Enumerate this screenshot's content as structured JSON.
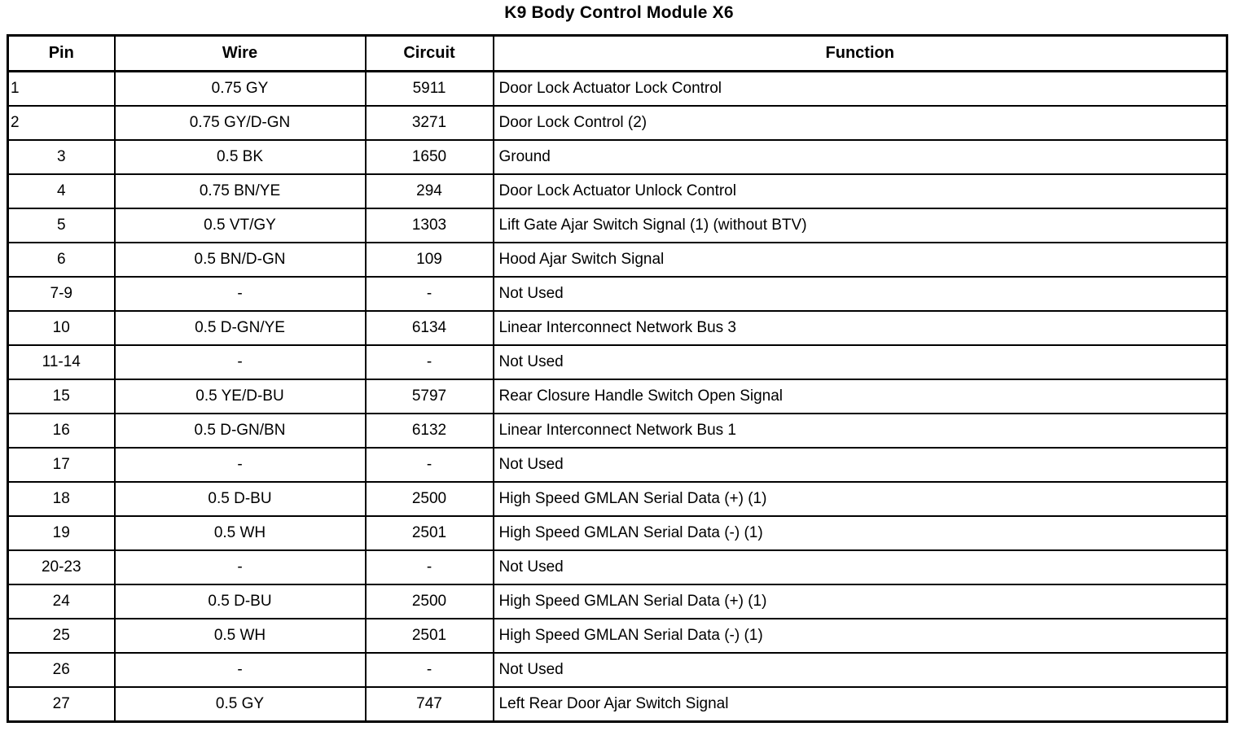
{
  "title": "K9 Body Control Module X6",
  "table": {
    "headers": {
      "pin": "Pin",
      "wire": "Wire",
      "circuit": "Circuit",
      "function": "Function"
    },
    "rows": [
      {
        "pin": "1",
        "wire": "0.75 GY",
        "circuit": "5911",
        "function": "Door Lock Actuator Lock Control",
        "pin_align": "left"
      },
      {
        "pin": "2",
        "wire": "0.75 GY/D-GN",
        "circuit": "3271",
        "function": "Door Lock Control (2)",
        "pin_align": "left"
      },
      {
        "pin": "3",
        "wire": "0.5 BK",
        "circuit": "1650",
        "function": "Ground",
        "pin_align": "center"
      },
      {
        "pin": "4",
        "wire": "0.75 BN/YE",
        "circuit": "294",
        "function": "Door Lock Actuator Unlock Control",
        "pin_align": "center"
      },
      {
        "pin": "5",
        "wire": "0.5 VT/GY",
        "circuit": "1303",
        "function": "Lift Gate Ajar Switch Signal (1) (without BTV)",
        "pin_align": "center"
      },
      {
        "pin": "6",
        "wire": "0.5 BN/D-GN",
        "circuit": "109",
        "function": "Hood Ajar Switch Signal",
        "pin_align": "center"
      },
      {
        "pin": "7-9",
        "wire": "-",
        "circuit": "-",
        "function": "Not Used",
        "pin_align": "center"
      },
      {
        "pin": "10",
        "wire": "0.5 D-GN/YE",
        "circuit": "6134",
        "function": "Linear Interconnect Network Bus 3",
        "pin_align": "center"
      },
      {
        "pin": "11-14",
        "wire": "-",
        "circuit": "-",
        "function": "Not Used",
        "pin_align": "center"
      },
      {
        "pin": "15",
        "wire": "0.5 YE/D-BU",
        "circuit": "5797",
        "function": "Rear Closure Handle Switch Open Signal",
        "pin_align": "center"
      },
      {
        "pin": "16",
        "wire": "0.5 D-GN/BN",
        "circuit": "6132",
        "function": "Linear Interconnect Network Bus 1",
        "pin_align": "center"
      },
      {
        "pin": "17",
        "wire": "-",
        "circuit": "-",
        "function": "Not Used",
        "pin_align": "center"
      },
      {
        "pin": "18",
        "wire": "0.5 D-BU",
        "circuit": "2500",
        "function": "High Speed GMLAN Serial Data (+) (1)",
        "pin_align": "center"
      },
      {
        "pin": "19",
        "wire": "0.5 WH",
        "circuit": "2501",
        "function": "High Speed GMLAN Serial Data (-) (1)",
        "pin_align": "center"
      },
      {
        "pin": "20-23",
        "wire": "-",
        "circuit": "-",
        "function": "Not Used",
        "pin_align": "center"
      },
      {
        "pin": "24",
        "wire": "0.5 D-BU",
        "circuit": "2500",
        "function": "High Speed GMLAN Serial Data (+) (1)",
        "pin_align": "center"
      },
      {
        "pin": "25",
        "wire": "0.5 WH",
        "circuit": "2501",
        "function": "High Speed GMLAN Serial Data (-) (1)",
        "pin_align": "center"
      },
      {
        "pin": "26",
        "wire": "-",
        "circuit": "-",
        "function": "Not Used",
        "pin_align": "center"
      },
      {
        "pin": "27",
        "wire": "0.5 GY",
        "circuit": "747",
        "function": "Left Rear Door Ajar Switch Signal",
        "pin_align": "center"
      }
    ]
  }
}
